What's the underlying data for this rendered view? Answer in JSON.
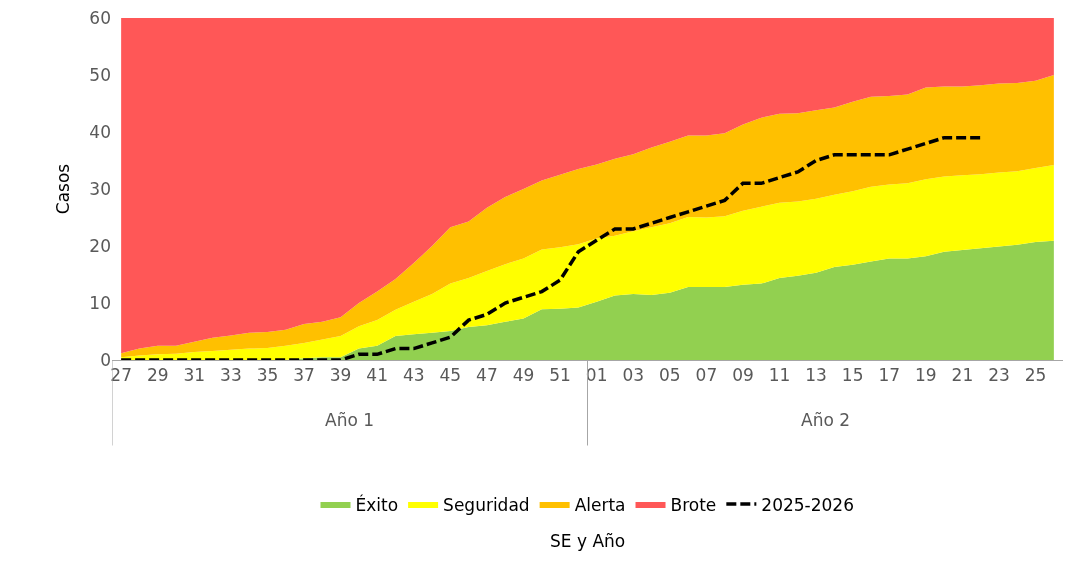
{
  "chart_data": {
    "type": "area",
    "stacked": true,
    "ylabel": "Casos",
    "categories": [
      "27",
      null,
      "29",
      null,
      "31",
      null,
      "33",
      null,
      "35",
      null,
      "37",
      null,
      "39",
      null,
      "41",
      null,
      "43",
      null,
      "45",
      null,
      "47",
      null,
      "49",
      null,
      "51",
      null,
      "01",
      null,
      "03",
      null,
      "05",
      null,
      "07",
      null,
      "09",
      null,
      "11",
      null,
      "13",
      null,
      "15",
      null,
      "17",
      null,
      "19",
      null,
      "21",
      null,
      "23",
      null,
      "25",
      null
    ],
    "ylim": [
      0,
      60
    ],
    "yticks": [
      0,
      10,
      20,
      30,
      40,
      50,
      60
    ],
    "legend": "bottom",
    "annotations": [
      "Año 1",
      "Año 2",
      "SE y Año"
    ],
    "series": [
      {
        "name": "Éxito",
        "color": "#92d050",
        "values": [
          0,
          0,
          0,
          0,
          0,
          0,
          0,
          0,
          0,
          0,
          0.3,
          0.5,
          0.5,
          2,
          2.5,
          4.2,
          4.5,
          4.8,
          5.1,
          5.8,
          6.1,
          6.7,
          7.3,
          8.9,
          9,
          9.2,
          10.2,
          11.3,
          11.6,
          11.4,
          11.8,
          12.8,
          12.8,
          12.8,
          13.2,
          13.4,
          14.4,
          14.8,
          15.3,
          16.3,
          16.7,
          17.3,
          17.8,
          17.8,
          18.2,
          19,
          19.3,
          19.6,
          19.9,
          20.2,
          20.7,
          20.9
        ]
      },
      {
        "name": "Seguridad",
        "color": "#ffff00",
        "values": [
          0.5,
          0.8,
          1.0,
          1.1,
          1.4,
          1.6,
          1.8,
          2.0,
          2.1,
          2.5,
          2.7,
          3.1,
          3.7,
          3.9,
          4.5,
          4.6,
          5.7,
          6.8,
          8.3,
          8.6,
          9.5,
          10.1,
          10.5,
          10.5,
          10.8,
          11.1,
          11.1,
          10.5,
          11.0,
          11.9,
          12.2,
          12.3,
          12.2,
          12.4,
          13.0,
          13.5,
          13.2,
          13.0,
          13.0,
          12.7,
          12.9,
          13.1,
          13.0,
          13.2,
          13.5,
          13.2,
          13.1,
          13.0,
          13.0,
          12.9,
          13.0,
          13.3
        ]
      },
      {
        "name": "Alerta",
        "color": "#ffc000",
        "values": [
          0.7,
          1.2,
          1.5,
          1.4,
          1.8,
          2.3,
          2.5,
          2.8,
          2.8,
          2.8,
          3.3,
          3.1,
          3.3,
          4.1,
          5.0,
          5.4,
          6.8,
          8.4,
          9.9,
          9.9,
          11.1,
          11.8,
          12.2,
          12.1,
          12.7,
          13.2,
          13.0,
          13.5,
          13.5,
          14.0,
          14.3,
          14.3,
          14.4,
          14.6,
          15.1,
          15.6,
          15.6,
          15.5,
          15.5,
          15.3,
          15.7,
          15.8,
          15.5,
          15.6,
          16.1,
          15.8,
          15.6,
          15.6,
          15.6,
          15.5,
          15.3,
          15.8
        ]
      },
      {
        "name": "Brote",
        "color": "#ff5757",
        "values": [
          58.8,
          58,
          57.5,
          57.5,
          56.8,
          56.1,
          55.7,
          55.2,
          55.1,
          54.7,
          53.7,
          53.3,
          52.5,
          50,
          48,
          45.8,
          43,
          40,
          36.7,
          35.7,
          33.3,
          31.4,
          30,
          28.5,
          27.5,
          26.5,
          25.7,
          24.7,
          23.9,
          22.7,
          21.7,
          20.6,
          20.6,
          20.2,
          18.7,
          17.5,
          16.8,
          16.7,
          16.2,
          15.7,
          14.7,
          13.8,
          13.7,
          13.4,
          12.2,
          12,
          12,
          11.8,
          11.5,
          11.4,
          11,
          10
        ]
      },
      {
        "name": "2025-2026",
        "type": "line",
        "color": "#000000",
        "line_style": "dashed",
        "marker": "none",
        "values": [
          0,
          0,
          0,
          0,
          0,
          0,
          0,
          0,
          0,
          0,
          0,
          0,
          0,
          1,
          1,
          2,
          2,
          3,
          4,
          7,
          8,
          10,
          11,
          12,
          14,
          19,
          21,
          23,
          23,
          24,
          25,
          26,
          27,
          28,
          31,
          31,
          32,
          33,
          35,
          36,
          36,
          36,
          36,
          37,
          38,
          39,
          39,
          39,
          null,
          null,
          null,
          null
        ]
      }
    ]
  }
}
